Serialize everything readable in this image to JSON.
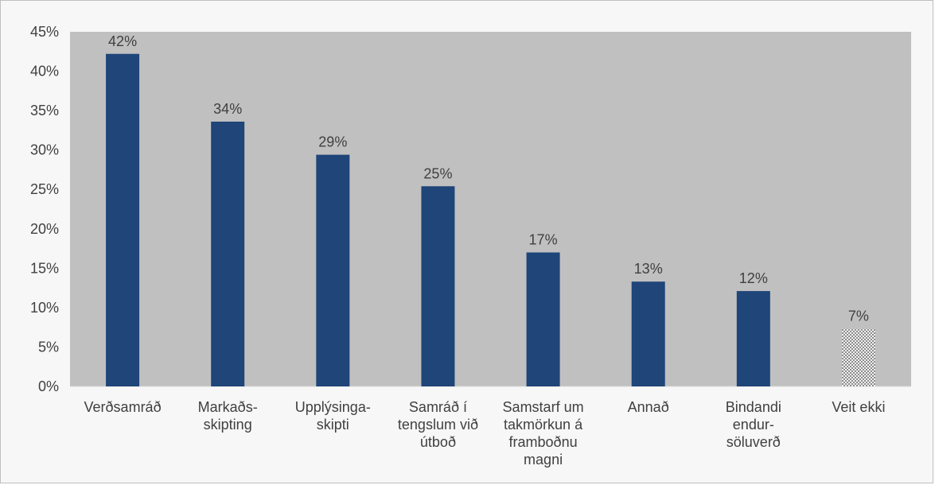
{
  "chart_data": {
    "type": "bar",
    "title": "",
    "xlabel": "",
    "ylabel": "",
    "ylim": [
      0,
      45
    ],
    "y_ticks": [
      "0%",
      "5%",
      "10%",
      "15%",
      "20%",
      "25%",
      "30%",
      "35%",
      "40%",
      "45%"
    ],
    "grid": false,
    "legend": "none",
    "categories": [
      [
        "Verðsamráð"
      ],
      [
        "Markaðs-",
        "skipting"
      ],
      [
        "Upplýsinga-",
        "skipti"
      ],
      [
        "Samráð í",
        "tengslum við",
        "útboð"
      ],
      [
        "Samstarf um",
        "takmörkun á",
        "framboðnu",
        "magni"
      ],
      [
        "Annað"
      ],
      [
        "Bindandi",
        "endur-",
        "söluverð"
      ],
      [
        "Veit ekki"
      ]
    ],
    "values": [
      42.2,
      33.6,
      29.4,
      25.4,
      17.0,
      13.3,
      12.1,
      7.3
    ],
    "data_labels": [
      "42%",
      "34%",
      "29%",
      "25%",
      "17%",
      "13%",
      "12%",
      "7%"
    ],
    "colors": {
      "bar": "#1f4579",
      "last_bar_pattern": "dotted-grey",
      "plot_background": "#c0c0c0",
      "frame_background": "#f7f7f7"
    }
  }
}
